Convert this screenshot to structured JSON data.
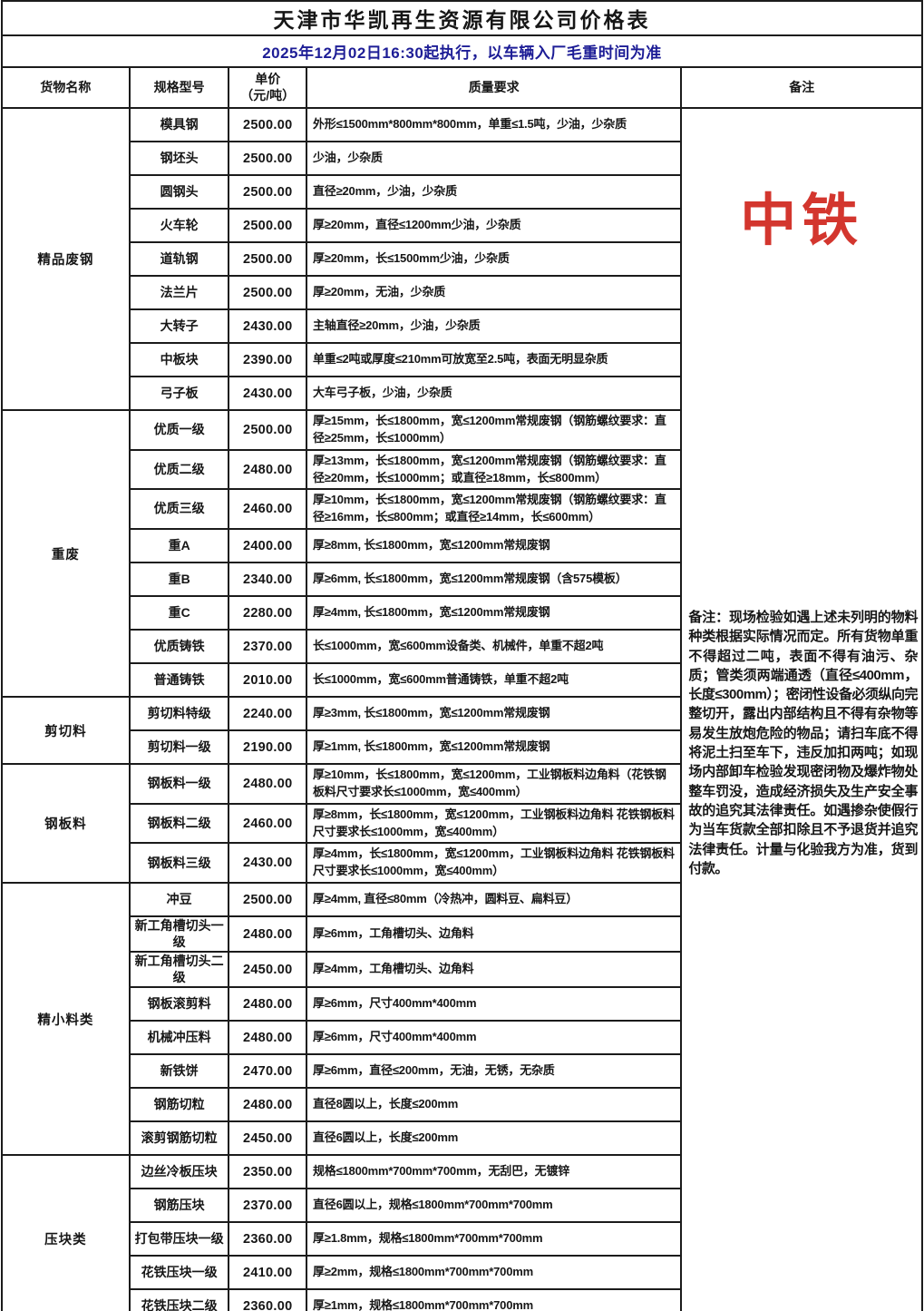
{
  "title": "天津市华凯再生资源有限公司价格表",
  "subtitle": "2025年12月02日16:30起执行，以车辆入厂毛重时间为准",
  "columns": {
    "name": "货物名称",
    "spec": "规格型号",
    "price": "单价\n（元/吨）",
    "quality": "质量要求",
    "remark": "备注"
  },
  "colors": {
    "subtitle_blue": "#1d1d96",
    "watermark_red": "#d3362e",
    "text_black": "#161616",
    "border_black": "#1b1b1b"
  },
  "remark": {
    "watermark": "中铁",
    "text": "备注：现场检验如遇上述未列明的物料种类根据实际情况而定。所有货物单重不得超过二吨，表面不得有油污、杂质；管类须两端通透（直径≤400mm，长度≤300mm）；密闭性设备必须纵向完整切开，露出内部结构且不得有杂物等易发生放炮危险的物品；请扫车底不得将泥土扫至车下，违反加扣两吨；如现场内部卸车检验发现密闭物及爆炸物处整车罚没，造成经济损失及生产安全事故的追究其法律责任。如遇掺杂使假行为当车货款全部扣除且不予退货并追究法律责任。计量与化验我方为准，货到付款。"
  },
  "categories": [
    {
      "name": "精品废钢",
      "rows": [
        {
          "spec": "模具钢",
          "price": "2500.00",
          "quality": "外形≤1500mm*800mm*800mm，单重≤1.5吨，少油，少杂质"
        },
        {
          "spec": "钢坯头",
          "price": "2500.00",
          "quality": "少油，少杂质"
        },
        {
          "spec": "圆钢头",
          "price": "2500.00",
          "quality": "直径≥20mm，少油，少杂质"
        },
        {
          "spec": "火车轮",
          "price": "2500.00",
          "quality": "厚≥20mm，直径≤1200mm少油，少杂质"
        },
        {
          "spec": "道轨钢",
          "price": "2500.00",
          "quality": "厚≥20mm，长≤1500mm少油，少杂质"
        },
        {
          "spec": "法兰片",
          "price": "2500.00",
          "quality": "厚≥20mm，无油，少杂质"
        },
        {
          "spec": "大转子",
          "price": "2430.00",
          "quality": "主轴直径≥20mm，少油，少杂质"
        },
        {
          "spec": "中板块",
          "price": "2390.00",
          "quality": "单重≤2吨或厚度≤210mm可放宽至2.5吨，表面无明显杂质"
        },
        {
          "spec": "弓子板",
          "price": "2430.00",
          "quality": "大车弓子板，少油，少杂质"
        }
      ]
    },
    {
      "name": "重废",
      "rows": [
        {
          "spec": "优质一级",
          "price": "2500.00",
          "quality": "厚≥15mm，长≤1800mm，宽≤1200mm常规废钢（钢筋螺纹要求：直径≥25mm，长≤1000mm）"
        },
        {
          "spec": "优质二级",
          "price": "2480.00",
          "quality": "厚≥13mm，长≤1800mm，宽≤1200mm常规废钢（钢筋螺纹要求：直径≥20mm，长≤1000mm；或直径≥18mm，长≤800mm）"
        },
        {
          "spec": "优质三级",
          "price": "2460.00",
          "quality": "厚≥10mm，长≤1800mm，宽≤1200mm常规废钢（钢筋螺纹要求：直径≥16mm，长≤800mm；或直径≥14mm，长≤600mm）"
        },
        {
          "spec": "重A",
          "price": "2400.00",
          "quality": "厚≥8mm, 长≤1800mm，宽≤1200mm常规废钢"
        },
        {
          "spec": "重B",
          "price": "2340.00",
          "quality": "厚≥6mm, 长≤1800mm，宽≤1200mm常规废钢（含575模板）"
        },
        {
          "spec": "重C",
          "price": "2280.00",
          "quality": "厚≥4mm, 长≤1800mm，宽≤1200mm常规废钢"
        },
        {
          "spec": "优质铸铁",
          "price": "2370.00",
          "quality": "长≤1000mm，宽≤600mm设备类、机械件，单重不超2吨"
        },
        {
          "spec": "普通铸铁",
          "price": "2010.00",
          "quality": "长≤1000mm，宽≤600mm普通铸铁，单重不超2吨"
        }
      ]
    },
    {
      "name": "剪切料",
      "rows": [
        {
          "spec": "剪切料特级",
          "price": "2240.00",
          "quality": "厚≥3mm, 长≤1800mm，宽≤1200mm常规废钢"
        },
        {
          "spec": "剪切料一级",
          "price": "2190.00",
          "quality": "厚≥1mm, 长≤1800mm，宽≤1200mm常规废钢"
        }
      ]
    },
    {
      "name": "钢板料",
      "rows": [
        {
          "spec": "钢板料一级",
          "price": "2480.00",
          "quality": "厚≥10mm，长≤1800mm，宽≤1200mm，工业钢板料边角料（花铁钢板料尺寸要求长≤1000mm，宽≤400mm）"
        },
        {
          "spec": "钢板料二级",
          "price": "2460.00",
          "quality": "厚≥8mm，长≤1800mm，宽≤1200mm，工业钢板料边角料 花铁钢板料尺寸要求长≤1000mm，宽≤400mm）"
        },
        {
          "spec": "钢板料三级",
          "price": "2430.00",
          "quality": "厚≥4mm，长≤1800mm，宽≤1200mm，工业钢板料边角料 花铁钢板料尺寸要求长≤1000mm，宽≤400mm）"
        }
      ]
    },
    {
      "name": "精小料类",
      "rows": [
        {
          "spec": "冲豆",
          "price": "2500.00",
          "quality": "厚≥4mm, 直径≤80mm（冷热冲，圆料豆、扁料豆）"
        },
        {
          "spec": "新工角槽切头一级",
          "price": "2480.00",
          "quality": "厚≥6mm，工角槽切头、边角料"
        },
        {
          "spec": "新工角槽切头二级",
          "price": "2450.00",
          "quality": "厚≥4mm，工角槽切头、边角料"
        },
        {
          "spec": "钢板滚剪料",
          "price": "2480.00",
          "quality": "厚≥6mm，尺寸400mm*400mm"
        },
        {
          "spec": "机械冲压料",
          "price": "2480.00",
          "quality": "厚≥6mm，尺寸400mm*400mm"
        },
        {
          "spec": "新铁饼",
          "price": "2470.00",
          "quality": "厚≥6mm，直径≤200mm，无油，无锈，无杂质"
        },
        {
          "spec": "钢筋切粒",
          "price": "2480.00",
          "quality": "直径8圆以上，长度≤200mm"
        },
        {
          "spec": "滚剪钢筋切粒",
          "price": "2450.00",
          "quality": "直径6圆以上，长度≤200mm"
        }
      ]
    },
    {
      "name": "压块类",
      "rows": [
        {
          "spec": "边丝冷板压块",
          "price": "2350.00",
          "quality": "规格≤1800mm*700mm*700mm，无刮巴，无镀锌"
        },
        {
          "spec": "钢筋压块",
          "price": "2370.00",
          "quality": "直径6圆以上，规格≤1800mm*700mm*700mm"
        },
        {
          "spec": "打包带压块一级",
          "price": "2360.00",
          "quality": "厚≥1.8mm，规格≤1800mm*700mm*700mm"
        },
        {
          "spec": "花铁压块一级",
          "price": "2410.00",
          "quality": "厚≥2mm，规格≤1800mm*700mm*700mm"
        },
        {
          "spec": "花铁压块二级",
          "price": "2360.00",
          "quality": "厚≥1mm，规格≤1800mm*700mm*700mm"
        }
      ]
    }
  ]
}
